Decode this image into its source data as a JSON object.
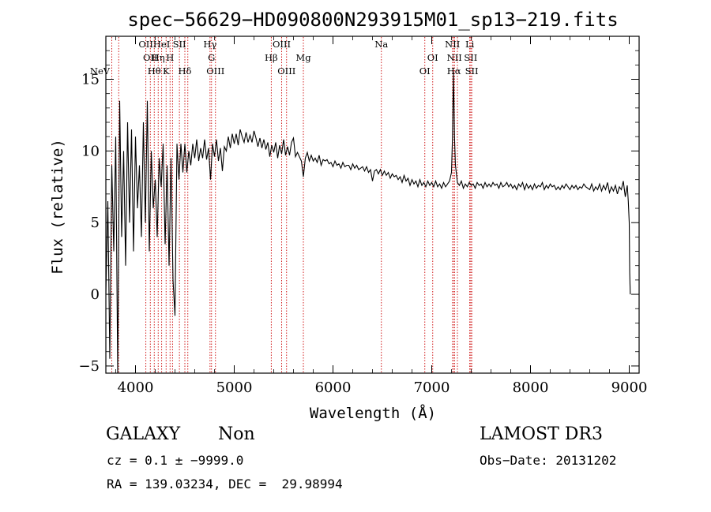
{
  "chart_data": {
    "type": "line",
    "title": "spec−56629−HD090800N293915M01_sp13−219.fits",
    "xlabel": "Wavelength (Å)",
    "ylabel": "Flux (relative)",
    "xlim": [
      3700,
      9100
    ],
    "ylim": [
      -5.5,
      18
    ],
    "x_ticks": [
      4000,
      5000,
      6000,
      7000,
      8000,
      9000
    ],
    "y_ticks": [
      -5,
      0,
      5,
      10,
      15
    ],
    "x_tick_labels": [
      "4000",
      "5000",
      "6000",
      "7000",
      "8000",
      "9000"
    ],
    "y_tick_labels": [
      "−5",
      "0",
      "5",
      "10",
      "15"
    ],
    "series": [
      {
        "name": "flux",
        "points": [
          [
            3700,
            0.0
          ],
          [
            3720,
            6.5
          ],
          [
            3740,
            -4.5
          ],
          [
            3760,
            9.0
          ],
          [
            3780,
            3.0
          ],
          [
            3800,
            11.0
          ],
          [
            3820,
            -5.5
          ],
          [
            3840,
            13.5
          ],
          [
            3860,
            4.0
          ],
          [
            3880,
            10.0
          ],
          [
            3900,
            2.0
          ],
          [
            3920,
            12.0
          ],
          [
            3940,
            5.0
          ],
          [
            3960,
            11.5
          ],
          [
            3980,
            3.0
          ],
          [
            4000,
            11.0
          ],
          [
            4020,
            6.0
          ],
          [
            4040,
            9.0
          ],
          [
            4060,
            4.0
          ],
          [
            4080,
            12.0
          ],
          [
            4100,
            5.0
          ],
          [
            4120,
            13.5
          ],
          [
            4140,
            3.0
          ],
          [
            4160,
            10.0
          ],
          [
            4180,
            6.0
          ],
          [
            4200,
            8.0
          ],
          [
            4220,
            4.0
          ],
          [
            4240,
            9.5
          ],
          [
            4260,
            7.5
          ],
          [
            4280,
            10.5
          ],
          [
            4300,
            3.5
          ],
          [
            4320,
            9.0
          ],
          [
            4340,
            2.0
          ],
          [
            4360,
            9.5
          ],
          [
            4380,
            1.0
          ],
          [
            4400,
            -1.5
          ],
          [
            4420,
            10.5
          ],
          [
            4440,
            8.0
          ],
          [
            4460,
            10.5
          ],
          [
            4480,
            8.5
          ],
          [
            4500,
            10.5
          ],
          [
            4520,
            8.5
          ],
          [
            4540,
            10.0
          ],
          [
            4560,
            9.0
          ],
          [
            4580,
            10.5
          ],
          [
            4600,
            9.5
          ],
          [
            4620,
            10.8
          ],
          [
            4640,
            9.3
          ],
          [
            4660,
            10.2
          ],
          [
            4680,
            9.5
          ],
          [
            4700,
            10.8
          ],
          [
            4720,
            9.4
          ],
          [
            4740,
            10.2
          ],
          [
            4760,
            8.0
          ],
          [
            4780,
            10.5
          ],
          [
            4800,
            9.6
          ],
          [
            4820,
            10.8
          ],
          [
            4840,
            9.3
          ],
          [
            4860,
            10.2
          ],
          [
            4880,
            8.6
          ],
          [
            4900,
            10.3
          ],
          [
            4920,
            10.0
          ],
          [
            4940,
            11.0
          ],
          [
            4960,
            10.2
          ],
          [
            4980,
            11.2
          ],
          [
            5000,
            10.5
          ],
          [
            5020,
            11.2
          ],
          [
            5040,
            10.4
          ],
          [
            5060,
            11.5
          ],
          [
            5080,
            11.0
          ],
          [
            5100,
            10.6
          ],
          [
            5120,
            11.3
          ],
          [
            5140,
            10.6
          ],
          [
            5160,
            11.1
          ],
          [
            5180,
            10.6
          ],
          [
            5200,
            11.4
          ],
          [
            5220,
            10.9
          ],
          [
            5240,
            10.3
          ],
          [
            5260,
            10.9
          ],
          [
            5280,
            10.2
          ],
          [
            5300,
            10.8
          ],
          [
            5320,
            10.1
          ],
          [
            5340,
            10.6
          ],
          [
            5360,
            9.6
          ],
          [
            5380,
            10.4
          ],
          [
            5400,
            9.9
          ],
          [
            5420,
            10.6
          ],
          [
            5440,
            9.5
          ],
          [
            5460,
            10.4
          ],
          [
            5480,
            9.8
          ],
          [
            5500,
            10.8
          ],
          [
            5520,
            9.7
          ],
          [
            5540,
            10.3
          ],
          [
            5560,
            9.7
          ],
          [
            5580,
            10.6
          ],
          [
            5600,
            10.9
          ],
          [
            5620,
            9.6
          ],
          [
            5640,
            9.9
          ],
          [
            5660,
            9.6
          ],
          [
            5680,
            9.3
          ],
          [
            5700,
            8.2
          ],
          [
            5720,
            9.5
          ],
          [
            5740,
            9.9
          ],
          [
            5760,
            9.3
          ],
          [
            5780,
            9.7
          ],
          [
            5800,
            9.3
          ],
          [
            5820,
            9.5
          ],
          [
            5840,
            9.2
          ],
          [
            5860,
            9.7
          ],
          [
            5880,
            9.0
          ],
          [
            5900,
            9.4
          ],
          [
            5920,
            9.3
          ],
          [
            5940,
            9.4
          ],
          [
            5960,
            9.1
          ],
          [
            5980,
            9.2
          ],
          [
            6000,
            8.9
          ],
          [
            6020,
            9.3
          ],
          [
            6040,
            9.0
          ],
          [
            6060,
            9.1
          ],
          [
            6080,
            8.8
          ],
          [
            6100,
            9.2
          ],
          [
            6120,
            8.9
          ],
          [
            6140,
            9.0
          ],
          [
            6160,
            9.0
          ],
          [
            6180,
            8.7
          ],
          [
            6200,
            9.1
          ],
          [
            6220,
            8.8
          ],
          [
            6240,
            9.0
          ],
          [
            6260,
            8.7
          ],
          [
            6280,
            8.8
          ],
          [
            6300,
            8.9
          ],
          [
            6320,
            8.6
          ],
          [
            6340,
            8.9
          ],
          [
            6360,
            8.5
          ],
          [
            6380,
            8.7
          ],
          [
            6400,
            7.9
          ],
          [
            6420,
            8.6
          ],
          [
            6440,
            8.7
          ],
          [
            6460,
            8.4
          ],
          [
            6480,
            8.7
          ],
          [
            6500,
            8.3
          ],
          [
            6520,
            8.6
          ],
          [
            6540,
            8.3
          ],
          [
            6560,
            8.5
          ],
          [
            6580,
            8.1
          ],
          [
            6600,
            8.4
          ],
          [
            6620,
            8.2
          ],
          [
            6640,
            8.3
          ],
          [
            6660,
            8.0
          ],
          [
            6680,
            8.2
          ],
          [
            6700,
            7.8
          ],
          [
            6720,
            8.3
          ],
          [
            6740,
            7.9
          ],
          [
            6760,
            8.1
          ],
          [
            6780,
            7.6
          ],
          [
            6800,
            8.0
          ],
          [
            6820,
            7.7
          ],
          [
            6840,
            7.9
          ],
          [
            6860,
            7.5
          ],
          [
            6880,
            8.0
          ],
          [
            6900,
            7.6
          ],
          [
            6920,
            7.8
          ],
          [
            6940,
            7.5
          ],
          [
            6960,
            7.9
          ],
          [
            6980,
            7.6
          ],
          [
            7000,
            7.8
          ],
          [
            7020,
            7.5
          ],
          [
            7040,
            7.9
          ],
          [
            7060,
            7.5
          ],
          [
            7080,
            7.7
          ],
          [
            7100,
            7.4
          ],
          [
            7120,
            7.8
          ],
          [
            7140,
            7.5
          ],
          [
            7160,
            7.7
          ],
          [
            7180,
            7.9
          ],
          [
            7200,
            8.5
          ],
          [
            7210,
            11.0
          ],
          [
            7220,
            15.5
          ],
          [
            7230,
            11.0
          ],
          [
            7240,
            9.0
          ],
          [
            7260,
            7.8
          ],
          [
            7280,
            7.6
          ],
          [
            7300,
            7.9
          ],
          [
            7320,
            7.4
          ],
          [
            7340,
            7.7
          ],
          [
            7360,
            7.5
          ],
          [
            7380,
            7.8
          ],
          [
            7400,
            7.6
          ],
          [
            7420,
            7.7
          ],
          [
            7440,
            7.4
          ],
          [
            7460,
            7.8
          ],
          [
            7480,
            7.6
          ],
          [
            7500,
            7.7
          ],
          [
            7520,
            7.4
          ],
          [
            7540,
            7.8
          ],
          [
            7560,
            7.5
          ],
          [
            7580,
            7.7
          ],
          [
            7600,
            7.5
          ],
          [
            7620,
            7.8
          ],
          [
            7640,
            7.6
          ],
          [
            7660,
            7.7
          ],
          [
            7680,
            7.4
          ],
          [
            7700,
            7.8
          ],
          [
            7720,
            7.5
          ],
          [
            7740,
            7.6
          ],
          [
            7760,
            7.8
          ],
          [
            7780,
            7.5
          ],
          [
            7800,
            7.7
          ],
          [
            7820,
            7.4
          ],
          [
            7840,
            7.6
          ],
          [
            7860,
            7.3
          ],
          [
            7880,
            7.7
          ],
          [
            7900,
            7.5
          ],
          [
            7920,
            7.8
          ],
          [
            7940,
            7.3
          ],
          [
            7960,
            7.7
          ],
          [
            7980,
            7.4
          ],
          [
            8000,
            7.6
          ],
          [
            8020,
            7.3
          ],
          [
            8040,
            7.7
          ],
          [
            8060,
            7.4
          ],
          [
            8080,
            7.6
          ],
          [
            8100,
            7.5
          ],
          [
            8120,
            7.8
          ],
          [
            8140,
            7.3
          ],
          [
            8160,
            7.6
          ],
          [
            8180,
            7.4
          ],
          [
            8200,
            7.7
          ],
          [
            8220,
            7.5
          ],
          [
            8240,
            7.6
          ],
          [
            8260,
            7.3
          ],
          [
            8280,
            7.5
          ],
          [
            8300,
            7.3
          ],
          [
            8320,
            7.6
          ],
          [
            8340,
            7.4
          ],
          [
            8360,
            7.7
          ],
          [
            8380,
            7.5
          ],
          [
            8400,
            7.3
          ],
          [
            8420,
            7.6
          ],
          [
            8440,
            7.4
          ],
          [
            8460,
            7.6
          ],
          [
            8480,
            7.3
          ],
          [
            8500,
            7.5
          ],
          [
            8520,
            7.4
          ],
          [
            8540,
            7.7
          ],
          [
            8560,
            7.5
          ],
          [
            8580,
            7.4
          ],
          [
            8600,
            7.3
          ],
          [
            8620,
            7.7
          ],
          [
            8640,
            7.2
          ],
          [
            8660,
            7.5
          ],
          [
            8680,
            7.3
          ],
          [
            8700,
            7.7
          ],
          [
            8720,
            7.2
          ],
          [
            8740,
            7.6
          ],
          [
            8760,
            7.3
          ],
          [
            8780,
            7.8
          ],
          [
            8800,
            7.1
          ],
          [
            8820,
            7.5
          ],
          [
            8840,
            7.2
          ],
          [
            8860,
            7.6
          ],
          [
            8880,
            7.0
          ],
          [
            8900,
            7.5
          ],
          [
            8920,
            7.3
          ],
          [
            8940,
            7.9
          ],
          [
            8960,
            6.8
          ],
          [
            8980,
            7.6
          ],
          [
            8990,
            6.5
          ],
          [
            9000,
            5.0
          ],
          [
            9005,
            1.5
          ],
          [
            9010,
            0.0
          ]
        ]
      }
    ],
    "line_markers": [
      {
        "wavelength": 3760,
        "label": "NeV",
        "row": 3
      },
      {
        "wavelength": 3830,
        "label": "",
        "row": 0
      },
      {
        "wavelength": 4105,
        "label": "OII",
        "row": 0
      },
      {
        "wavelength": 4150,
        "label": "OII",
        "row": 1
      },
      {
        "wavelength": 4190,
        "label": "Hθ",
        "row": 2
      },
      {
        "wavelength": 4230,
        "label": "Hη",
        "row": 1
      },
      {
        "wavelength": 4265,
        "label": "HeI",
        "row": 0
      },
      {
        "wavelength": 4310,
        "label": "K",
        "row": 2
      },
      {
        "wavelength": 4350,
        "label": "H",
        "row": 1
      },
      {
        "wavelength": 4375,
        "label": "",
        "row": 0
      },
      {
        "wavelength": 4445,
        "label": "SII",
        "row": 0
      },
      {
        "wavelength": 4500,
        "label": "Hδ",
        "row": 2
      },
      {
        "wavelength": 4530,
        "label": "",
        "row": 0
      },
      {
        "wavelength": 4755,
        "label": "Hγ",
        "row": 0
      },
      {
        "wavelength": 4770,
        "label": "G",
        "row": 1
      },
      {
        "wavelength": 4810,
        "label": "OIII",
        "row": 2
      },
      {
        "wavelength": 5375,
        "label": "Hβ",
        "row": 1
      },
      {
        "wavelength": 5480,
        "label": "OIII",
        "row": 0
      },
      {
        "wavelength": 5530,
        "label": "OIII",
        "row": 2
      },
      {
        "wavelength": 5700,
        "label": "Mg",
        "row": 1
      },
      {
        "wavelength": 6490,
        "label": "Na",
        "row": 0
      },
      {
        "wavelength": 6930,
        "label": "OI",
        "row": 2
      },
      {
        "wavelength": 7010,
        "label": "OI",
        "row": 1
      },
      {
        "wavelength": 7210,
        "label": "NII",
        "row": 0
      },
      {
        "wavelength": 7230,
        "label": "NII",
        "row": 1
      },
      {
        "wavelength": 7225,
        "label": "Hα",
        "row": 2
      },
      {
        "wavelength": 7260,
        "label": "",
        "row": 0
      },
      {
        "wavelength": 7385,
        "label": "Li",
        "row": 0
      },
      {
        "wavelength": 7395,
        "label": "SII",
        "row": 1
      },
      {
        "wavelength": 7405,
        "label": "SII",
        "row": 2
      }
    ]
  },
  "info": {
    "class": "GALAXY",
    "subclass": "Non",
    "survey": "LAMOST DR3",
    "cz": "cz = 0.1 ± −9999.0",
    "obs_date": "Obs−Date: 20131202",
    "radec": "RA = 139.03234, DEC =  29.98994"
  },
  "colors": {
    "axis": "#000000",
    "spectrum": "#000000",
    "marker": "#cc0000"
  }
}
